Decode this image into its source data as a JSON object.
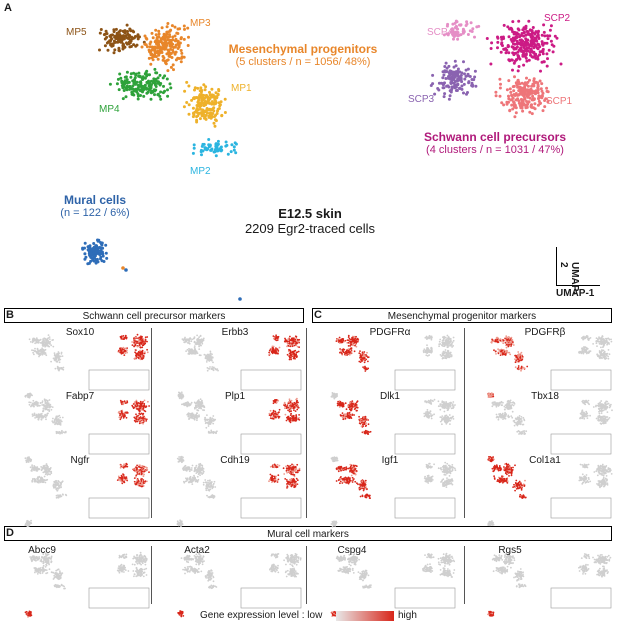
{
  "panels": {
    "a": "A",
    "b": "B",
    "c": "C",
    "d": "D"
  },
  "main_plot": {
    "title": "E12.5 skin",
    "subtitle": "2209 Egr2-traced cells",
    "axis_x": "UMAP-1",
    "axis_y": "UMAP-2",
    "groups": {
      "mp": {
        "name": "Mesenchymal progenitors",
        "info": "(5 clusters / n = 1056/ 48%)",
        "color": "#e8862a"
      },
      "scp": {
        "name": "Schwann cell precursors",
        "info": "(4 clusters / n = 1031 / 47%)",
        "color": "#b0197a"
      },
      "mural": {
        "name": "Mural cells",
        "info": "(n = 122 / 6%)",
        "color": "#2e63a8"
      }
    },
    "clusters": [
      {
        "label": "MP5",
        "color": "#8c5316"
      },
      {
        "label": "MP3",
        "color": "#e8862a"
      },
      {
        "label": "MP1",
        "color": "#eeb12a"
      },
      {
        "label": "MP4",
        "color": "#2ea23a"
      },
      {
        "label": "MP2",
        "color": "#2bb5e0"
      },
      {
        "label": "SCP4",
        "color": "#e58ec6"
      },
      {
        "label": "SCP2",
        "color": "#cc1b85"
      },
      {
        "label": "SCP3",
        "color": "#8a63b0"
      },
      {
        "label": "SCP1",
        "color": "#ee7579"
      },
      {
        "label": "Mural",
        "color": "#2e6db8"
      }
    ]
  },
  "section_b": {
    "title": "Schwann cell precursor markers",
    "genes": [
      "Sox10",
      "Erbb3",
      "Fabp7",
      "Plp1",
      "Ngfr",
      "Cdh19"
    ]
  },
  "section_c": {
    "title": "Mesenchymal progenitor markers",
    "genes": [
      "PDGFRα",
      "PDGFRβ",
      "Dlk1",
      "Tbx18",
      "Igf1",
      "Col1a1"
    ]
  },
  "section_d": {
    "title": "Mural cell markers",
    "genes": [
      "Abcc9",
      "Acta2",
      "Cspg4",
      "Rgs5"
    ]
  },
  "legend": {
    "label": "Gene expression level : low",
    "high": "high",
    "low_color": "#e8e8e8",
    "high_color": "#d8261a"
  },
  "chart_data": {
    "type": "scatter",
    "title": "E12.5 skin",
    "subtitle": "2209 Egr2-traced cells",
    "xlabel": "UMAP-1",
    "ylabel": "UMAP-2",
    "series": [
      {
        "name": "MP5",
        "group": "Mesenchymal progenitors"
      },
      {
        "name": "MP3",
        "group": "Mesenchymal progenitors"
      },
      {
        "name": "MP1",
        "group": "Mesenchymal progenitors"
      },
      {
        "name": "MP4",
        "group": "Mesenchymal progenitors"
      },
      {
        "name": "MP2",
        "group": "Mesenchymal progenitors"
      },
      {
        "name": "SCP4",
        "group": "Schwann cell precursors"
      },
      {
        "name": "SCP2",
        "group": "Schwann cell precursors"
      },
      {
        "name": "SCP3",
        "group": "Schwann cell precursors"
      },
      {
        "name": "SCP1",
        "group": "Schwann cell precursors"
      },
      {
        "name": "Mural",
        "group": "Mural cells"
      }
    ],
    "totals": {
      "cells": 2209,
      "mp_n": 1056,
      "mp_pct": 48,
      "scp_n": 1031,
      "scp_pct": 47,
      "mural_n": 122,
      "mural_pct": 6
    },
    "grid": false
  }
}
